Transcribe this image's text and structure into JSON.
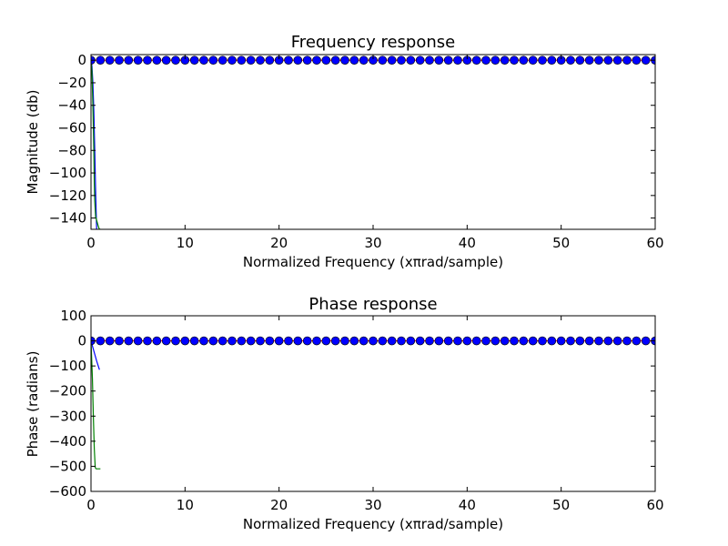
{
  "chart_data": [
    {
      "type": "line",
      "title": "Frequency response",
      "xlabel": "Normalized Frequency (xπrad/sample)",
      "ylabel": "Magnitude (db)",
      "xlim": [
        0,
        60
      ],
      "ylim": [
        -150,
        5
      ],
      "xticks": [
        0,
        10,
        20,
        30,
        40,
        50,
        60
      ],
      "yticks": [
        0,
        -20,
        -40,
        -60,
        -80,
        -100,
        -120,
        -140
      ],
      "xtick_labels": [
        "0",
        "10",
        "20",
        "30",
        "40",
        "50",
        "60"
      ],
      "ytick_labels": [
        "0",
        "−20",
        "−40",
        "−60",
        "−80",
        "−100",
        "−120",
        "−140"
      ],
      "grid": false,
      "series": [
        {
          "color": "#0000ff",
          "style": "line",
          "x": [
            0,
            0.1,
            0.2,
            0.3,
            0.4,
            0.5,
            0.6
          ],
          "y": [
            0,
            -5,
            -20,
            -45,
            -80,
            -120,
            -150
          ]
        },
        {
          "color": "#008000",
          "style": "line",
          "x": [
            0,
            0.1,
            0.2,
            0.3,
            0.35,
            0.4,
            0.5,
            0.55,
            0.6,
            0.7,
            0.8,
            0.9,
            1.0
          ],
          "y": [
            0,
            -10,
            -40,
            -80,
            -110,
            -125,
            -140,
            -140,
            -142,
            -145,
            -148,
            -150,
            -150
          ]
        },
        {
          "color": "#ff0000",
          "style": "line",
          "x": [
            0,
            60
          ],
          "y": [
            0,
            0
          ]
        },
        {
          "color": "#0000ff",
          "style": "markers",
          "marker": "circle",
          "x": [
            0,
            1,
            2,
            3,
            4,
            5,
            6,
            7,
            8,
            9,
            10,
            11,
            12,
            13,
            14,
            15,
            16,
            17,
            18,
            19,
            20,
            21,
            22,
            23,
            24,
            25,
            26,
            27,
            28,
            29,
            30,
            31,
            32,
            33,
            34,
            35,
            36,
            37,
            38,
            39,
            40,
            41,
            42,
            43,
            44,
            45,
            46,
            47,
            48,
            49,
            50,
            51,
            52,
            53,
            54,
            55,
            56,
            57,
            58,
            59,
            60
          ],
          "y": [
            0,
            0,
            0,
            0,
            0,
            0,
            0,
            0,
            0,
            0,
            0,
            0,
            0,
            0,
            0,
            0,
            0,
            0,
            0,
            0,
            0,
            0,
            0,
            0,
            0,
            0,
            0,
            0,
            0,
            0,
            0,
            0,
            0,
            0,
            0,
            0,
            0,
            0,
            0,
            0,
            0,
            0,
            0,
            0,
            0,
            0,
            0,
            0,
            0,
            0,
            0,
            0,
            0,
            0,
            0,
            0,
            0,
            0,
            0,
            0,
            0
          ]
        }
      ]
    },
    {
      "type": "line",
      "title": "Phase response",
      "xlabel": "Normalized Frequency (xπrad/sample)",
      "ylabel": "Phase (radians)",
      "xlim": [
        0,
        60
      ],
      "ylim": [
        -600,
        100
      ],
      "xticks": [
        0,
        10,
        20,
        30,
        40,
        50,
        60
      ],
      "yticks": [
        100,
        0,
        -100,
        -200,
        -300,
        -400,
        -500,
        -600
      ],
      "xtick_labels": [
        "0",
        "10",
        "20",
        "30",
        "40",
        "50",
        "60"
      ],
      "ytick_labels": [
        "100",
        "0",
        "−100",
        "−200",
        "−300",
        "−400",
        "−500",
        "−600"
      ],
      "grid": false,
      "series": [
        {
          "color": "#0000ff",
          "style": "line",
          "x": [
            0,
            0.3,
            0.6,
            0.9
          ],
          "y": [
            0,
            -40,
            -80,
            -115
          ]
        },
        {
          "color": "#008000",
          "style": "line",
          "x": [
            0,
            0.15,
            0.25,
            0.35,
            0.45,
            0.55,
            1.0
          ],
          "y": [
            0,
            -150,
            -300,
            -430,
            -505,
            -510,
            -510
          ]
        },
        {
          "color": "#ff0000",
          "style": "line",
          "x": [
            0,
            60
          ],
          "y": [
            0,
            0
          ]
        },
        {
          "color": "#0000ff",
          "style": "markers",
          "marker": "circle",
          "x": [
            0,
            1,
            2,
            3,
            4,
            5,
            6,
            7,
            8,
            9,
            10,
            11,
            12,
            13,
            14,
            15,
            16,
            17,
            18,
            19,
            20,
            21,
            22,
            23,
            24,
            25,
            26,
            27,
            28,
            29,
            30,
            31,
            32,
            33,
            34,
            35,
            36,
            37,
            38,
            39,
            40,
            41,
            42,
            43,
            44,
            45,
            46,
            47,
            48,
            49,
            50,
            51,
            52,
            53,
            54,
            55,
            56,
            57,
            58,
            59,
            60
          ],
          "y": [
            0,
            0,
            0,
            0,
            0,
            0,
            0,
            0,
            0,
            0,
            0,
            0,
            0,
            0,
            0,
            0,
            0,
            0,
            0,
            0,
            0,
            0,
            0,
            0,
            0,
            0,
            0,
            0,
            0,
            0,
            0,
            0,
            0,
            0,
            0,
            0,
            0,
            0,
            0,
            0,
            0,
            0,
            0,
            0,
            0,
            0,
            0,
            0,
            0,
            0,
            0,
            0,
            0,
            0,
            0,
            0,
            0,
            0,
            0,
            0,
            0
          ]
        }
      ]
    }
  ]
}
